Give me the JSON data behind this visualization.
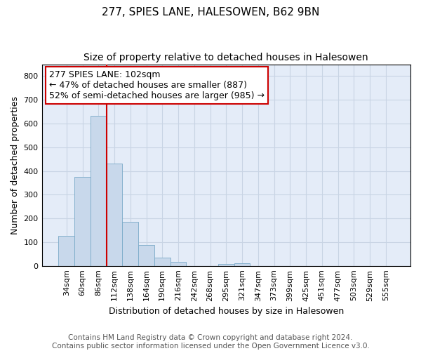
{
  "title": "277, SPIES LANE, HALESOWEN, B62 9BN",
  "subtitle": "Size of property relative to detached houses in Halesowen",
  "xlabel": "Distribution of detached houses by size in Halesowen",
  "ylabel": "Number of detached properties",
  "bar_color": "#c8d8eb",
  "bar_edge_color": "#7aaac8",
  "categories": [
    "34sqm",
    "60sqm",
    "86sqm",
    "112sqm",
    "138sqm",
    "164sqm",
    "190sqm",
    "216sqm",
    "242sqm",
    "268sqm",
    "295sqm",
    "321sqm",
    "347sqm",
    "373sqm",
    "399sqm",
    "425sqm",
    "451sqm",
    "477sqm",
    "503sqm",
    "529sqm",
    "555sqm"
  ],
  "values": [
    127,
    375,
    632,
    430,
    185,
    87,
    35,
    16,
    0,
    0,
    8,
    10,
    0,
    0,
    0,
    0,
    0,
    0,
    0,
    0,
    0
  ],
  "vline_x": 2.5,
  "vline_color": "#cc0000",
  "annotation_line1": "277 SPIES LANE: 102sqm",
  "annotation_line2": "← 47% of detached houses are smaller (887)",
  "annotation_line3": "52% of semi-detached houses are larger (985) →",
  "annotation_box_color": "#ffffff",
  "annotation_box_edge": "#cc0000",
  "ylim": [
    0,
    850
  ],
  "yticks": [
    0,
    100,
    200,
    300,
    400,
    500,
    600,
    700,
    800
  ],
  "grid_color": "#c8d4e4",
  "background_color": "#e4ecf8",
  "footer": "Contains HM Land Registry data © Crown copyright and database right 2024.\nContains public sector information licensed under the Open Government Licence v3.0.",
  "title_fontsize": 11,
  "subtitle_fontsize": 10,
  "xlabel_fontsize": 9,
  "ylabel_fontsize": 9,
  "tick_fontsize": 8,
  "annotation_fontsize": 9,
  "footer_fontsize": 7.5
}
